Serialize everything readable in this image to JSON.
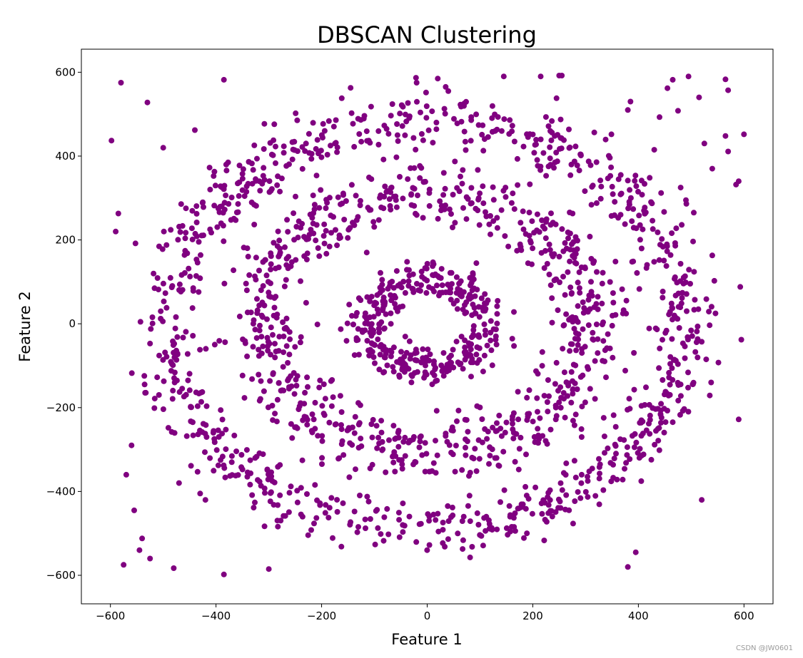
{
  "chart_data": {
    "type": "scatter",
    "title": "DBSCAN Clustering",
    "xlabel": "Feature 1",
    "ylabel": "Feature 2",
    "xlim": [
      -655,
      655
    ],
    "ylim": [
      -668,
      655
    ],
    "xticks": [
      -600,
      -400,
      -200,
      0,
      200,
      400,
      600
    ],
    "yticks": [
      -600,
      -400,
      -200,
      0,
      200,
      400,
      600
    ],
    "xtick_labels": [
      "−600",
      "−400",
      "−200",
      "0",
      "200",
      "400",
      "600"
    ],
    "ytick_labels": [
      "−600",
      "−400",
      "−200",
      "0",
      "200",
      "400",
      "600"
    ],
    "grid": false,
    "marker_color": "#800080",
    "series": [
      {
        "rings": [
          {
            "center": [
              0,
              0
            ],
            "radius": 110,
            "count": 360
          },
          {
            "center": [
              0,
              0
            ],
            "radius": 310,
            "count": 760
          },
          {
            "center": [
              0,
              0
            ],
            "radius": 490,
            "count": 920
          }
        ],
        "x": [
          -598,
          -580,
          -530,
          -585,
          -590,
          -575,
          -545,
          -540,
          -480,
          -430,
          -385,
          -300,
          465,
          515,
          540,
          565,
          570,
          590,
          593,
          585,
          570,
          565,
          380,
          385,
          395,
          380,
          520,
          -385,
          -525,
          455,
          430,
          475,
          440,
          495,
          525,
          505,
          600,
          595,
          590,
          480,
          490,
          540,
          -555,
          -560,
          -570,
          -500,
          -310,
          -325,
          145,
          250,
          255,
          245,
          240,
          -440,
          -470,
          -420,
          20,
          35,
          -20,
          40,
          215
        ],
        "y": [
          437,
          575,
          528,
          263,
          220,
          -575,
          -540,
          -512,
          -583,
          -405,
          -598,
          -585,
          582,
          540,
          370,
          583,
          557,
          340,
          88,
          332,
          411,
          448,
          510,
          530,
          -545,
          -580,
          -420,
          582,
          -560,
          562,
          415,
          508,
          493,
          590,
          430,
          265,
          452,
          -38,
          -228,
          325,
          295,
          163,
          -445,
          -290,
          -360,
          420,
          372,
          345,
          590,
          592,
          592,
          538,
          372,
          462,
          -380,
          -420,
          585,
          565,
          575,
          555,
          590
        ]
      }
    ]
  },
  "watermark": "CSDN @JW0601"
}
